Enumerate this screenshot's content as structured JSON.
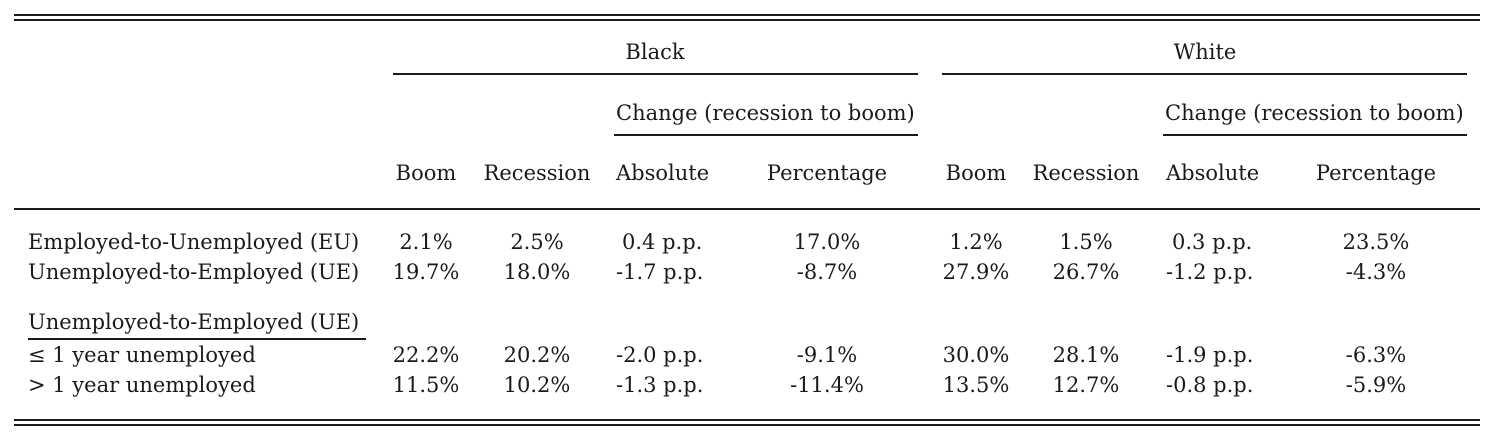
{
  "table": {
    "groups": [
      {
        "name": "Black",
        "change_label": "Change (recession to boom)"
      },
      {
        "name": "White",
        "change_label": "Change (recession to boom)"
      }
    ],
    "columns": [
      "Boom",
      "Recession",
      "Absolute",
      "Percentage",
      "Boom",
      "Recession",
      "Absolute",
      "Percentage"
    ],
    "rows": [
      {
        "label": "Employed-to-Unemployed (EU)",
        "cells": [
          "2.1%",
          "2.5%",
          "0.4 p.p.",
          "17.0%",
          "1.2%",
          "1.5%",
          "0.3 p.p.",
          "23.5%"
        ]
      },
      {
        "label": "Unemployed-to-Employed (UE)",
        "cells": [
          "19.7%",
          "18.0%",
          "-1.7 p.p.",
          "-8.7%",
          "27.9%",
          "26.7%",
          "-1.2 p.p.",
          "-4.3%"
        ]
      }
    ],
    "subsection": {
      "label": "Unemployed-to-Employed (UE)",
      "rows": [
        {
          "label": "≤ 1 year unemployed",
          "cells": [
            "22.2%",
            "20.2%",
            "-2.0 p.p.",
            "-9.1%",
            "30.0%",
            "28.1%",
            "-1.9 p.p.",
            "-6.3%"
          ]
        },
        {
          "label": "> 1 year unemployed",
          "cells": [
            "11.5%",
            "10.2%",
            "-1.3 p.p.",
            "-11.4%",
            "13.5%",
            "12.7%",
            "-0.8 p.p.",
            "-5.9%"
          ]
        }
      ]
    }
  }
}
